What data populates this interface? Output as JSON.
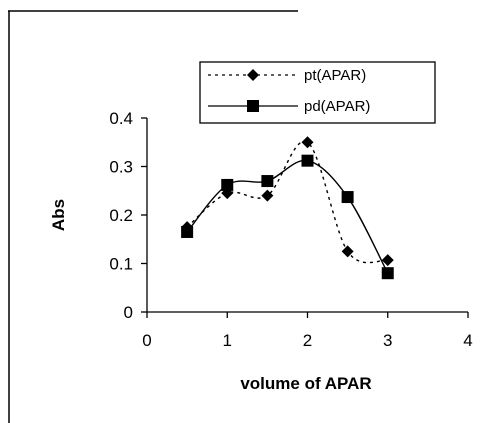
{
  "chart_data": {
    "type": "line",
    "title": "",
    "xlabel": "volume of APAR",
    "ylabel": "Abs",
    "xlim": [
      0,
      4
    ],
    "ylim": [
      0,
      0.4
    ],
    "xticks": [
      "0",
      "1",
      "2",
      "3",
      "4"
    ],
    "yticks": [
      "0",
      "0.1",
      "0.2",
      "0.3",
      "0.4"
    ],
    "grid": false,
    "legend_position": "top-right",
    "series": [
      {
        "name": "pt(APAR)",
        "marker": "diamond",
        "line": "dotted",
        "color": "#000000",
        "x": [
          0.5,
          1.0,
          1.5,
          2.0,
          2.5,
          3.0
        ],
        "y": [
          0.175,
          0.245,
          0.24,
          0.35,
          0.125,
          0.107
        ]
      },
      {
        "name": "pd(APAR)",
        "marker": "square",
        "line": "solid",
        "color": "#000000",
        "x": [
          0.5,
          1.0,
          1.5,
          2.0,
          2.5,
          3.0
        ],
        "y": [
          0.165,
          0.262,
          0.27,
          0.312,
          0.237,
          0.08
        ]
      }
    ]
  }
}
